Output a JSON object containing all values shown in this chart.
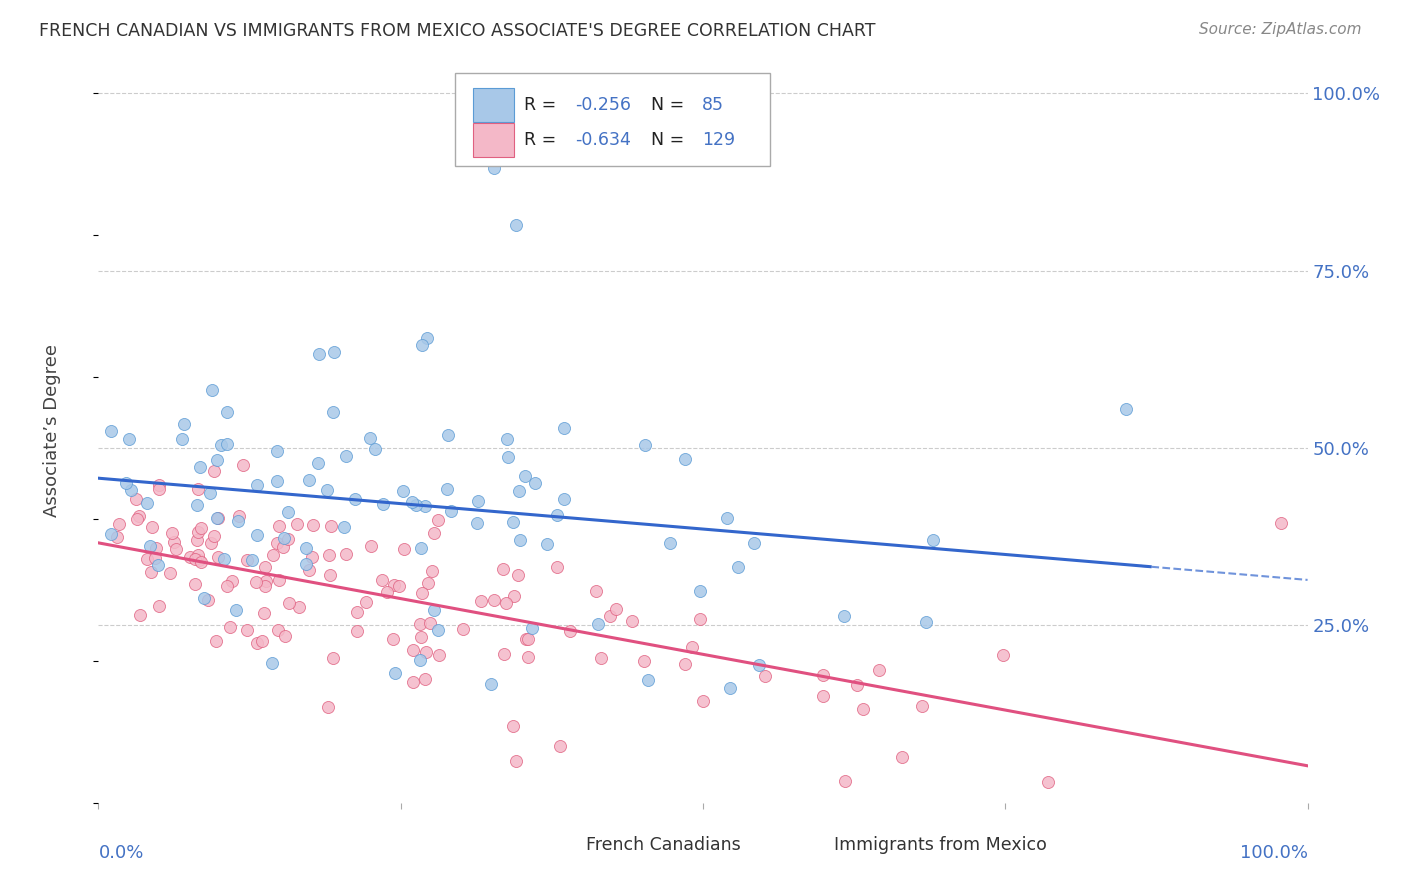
{
  "title": "FRENCH CANADIAN VS IMMIGRANTS FROM MEXICO ASSOCIATE'S DEGREE CORRELATION CHART",
  "source": "Source: ZipAtlas.com",
  "ylabel": "Associate’s Degree",
  "blue_color": "#a8c8e8",
  "blue_edge_color": "#5b9bd5",
  "pink_color": "#f4b8c8",
  "pink_edge_color": "#e06080",
  "blue_line_color": "#3366cc",
  "pink_line_color": "#e05080",
  "blue_r": -0.256,
  "blue_n": 85,
  "pink_r": -0.634,
  "pink_n": 129,
  "blue_intercept": 0.445,
  "blue_slope": -0.185,
  "pink_intercept": 0.385,
  "pink_slope": -0.385,
  "background_color": "#ffffff",
  "grid_color": "#cccccc",
  "title_color": "#333333",
  "axis_color": "#4472c4",
  "legend_r_color": "#000000",
  "legend_val_color": "#4472c4"
}
